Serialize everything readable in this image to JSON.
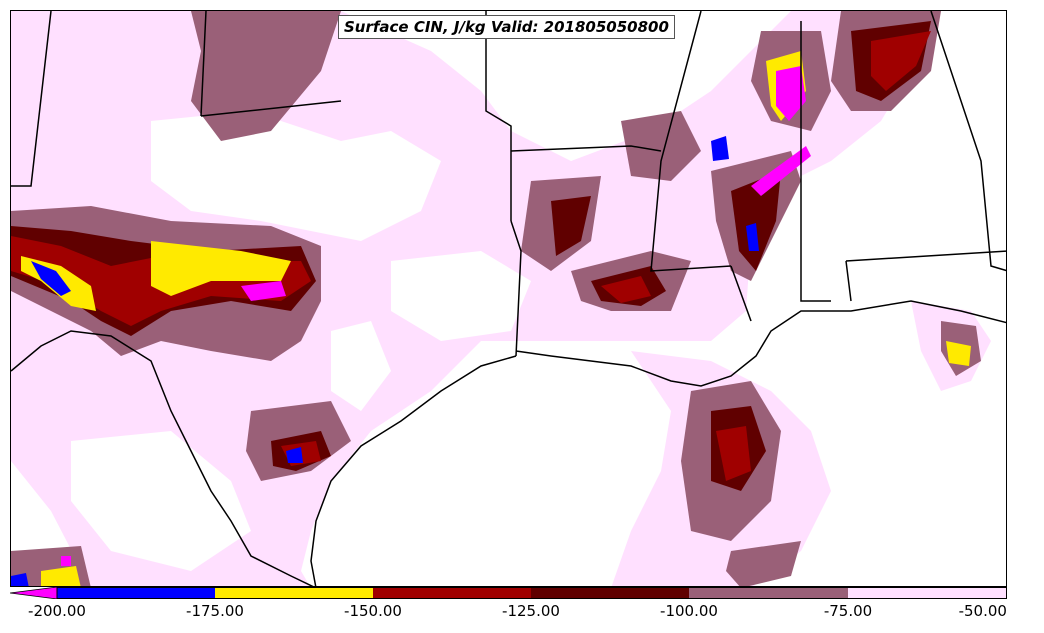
{
  "title": "Surface CIN, J/kg Valid: 201805050800",
  "colors": {
    "lt_-200": "#ff00ff",
    "-200_-175": "#0000ff",
    "-175_-150": "#ffea00",
    "-150_-125": "#a00000",
    "-125_-100": "#600000",
    "-100_-75": "#9a6078",
    "-75_-50": "#ffe0ff",
    "background": "#ffffff",
    "border_lines": "#000000"
  },
  "colorbar": {
    "labels": [
      "-200.00",
      "-175.00",
      "-150.00",
      "-125.00",
      "-100.00",
      "-75.00",
      "-50.00"
    ],
    "values": [
      -200,
      -175,
      -150,
      -125,
      -100,
      -75,
      -50
    ],
    "extend": "min"
  }
}
